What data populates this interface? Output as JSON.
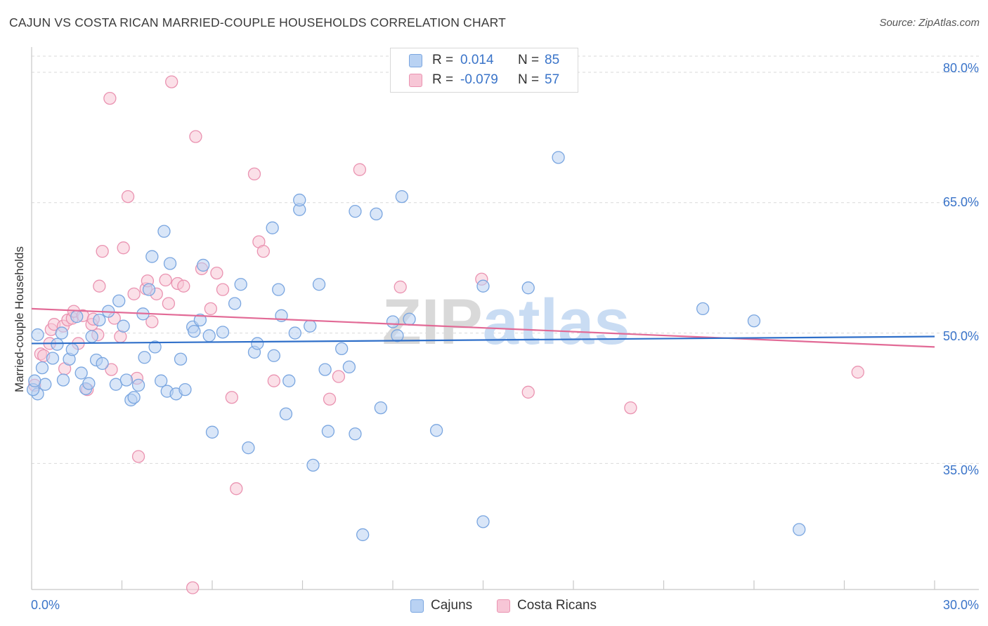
{
  "title": "CAJUN VS COSTA RICAN MARRIED-COUPLE HOUSEHOLDS CORRELATION CHART",
  "source": "Source: ZipAtlas.com",
  "watermark": "ZIPatlas",
  "legend": {
    "rows": [
      {
        "r_label": "R =",
        "r_value": "0.014",
        "n_label": "N =",
        "n_value": "85"
      },
      {
        "r_label": "R =",
        "r_value": "-0.079",
        "n_label": "N =",
        "n_value": "57"
      }
    ]
  },
  "bottom_legend": [
    "Cajuns",
    "Costa Ricans"
  ],
  "colors": {
    "cajuns_fill": "#b9d2f3",
    "cajuns_stroke": "#7aa6e0",
    "cajuns_line": "#2f6fc9",
    "costa_fill": "#f7c6d6",
    "costa_stroke": "#ea93b1",
    "costa_line": "#e26a96",
    "tick_text": "#3a74c9",
    "grid": "#d9d9d9"
  },
  "chart_data": {
    "type": "scatter",
    "title": "CAJUN VS COSTA RICAN MARRIED-COUPLE HOUSEHOLDS CORRELATION CHART",
    "xlabel": "",
    "ylabel": "Married-couple Households",
    "xlim": [
      0,
      30
    ],
    "ylim": [
      20.5,
      82.5
    ],
    "x_tick_labels": [
      "0.0%",
      "30.0%"
    ],
    "y_ticks": [
      35,
      50,
      65,
      80
    ],
    "y_tick_labels": [
      "35.0%",
      "50.0%",
      "65.0%",
      "80.0%"
    ],
    "grid": true,
    "legend_position": "top-center",
    "series": [
      {
        "name": "Cajuns",
        "r": 0.014,
        "n": 85,
        "trend": {
          "x": [
            0,
            30
          ],
          "y": [
            48.8,
            49.6
          ]
        },
        "points": [
          [
            0.2,
            43.0
          ],
          [
            0.2,
            49.8
          ],
          [
            0.35,
            46.0
          ],
          [
            0.45,
            44.1
          ],
          [
            0.7,
            47.1
          ],
          [
            0.85,
            48.7
          ],
          [
            1.0,
            50.0
          ],
          [
            1.05,
            44.6
          ],
          [
            1.25,
            47.0
          ],
          [
            1.35,
            48.1
          ],
          [
            1.5,
            51.9
          ],
          [
            1.65,
            45.4
          ],
          [
            1.8,
            43.6
          ],
          [
            1.9,
            44.2
          ],
          [
            2.0,
            49.6
          ],
          [
            2.15,
            46.9
          ],
          [
            2.25,
            51.5
          ],
          [
            2.35,
            46.5
          ],
          [
            2.55,
            52.5
          ],
          [
            2.8,
            44.1
          ],
          [
            2.9,
            53.7
          ],
          [
            3.05,
            50.8
          ],
          [
            3.15,
            44.6
          ],
          [
            3.3,
            42.3
          ],
          [
            3.4,
            42.6
          ],
          [
            3.55,
            44.0
          ],
          [
            3.7,
            52.2
          ],
          [
            3.75,
            47.2
          ],
          [
            3.9,
            55.0
          ],
          [
            4.0,
            58.8
          ],
          [
            4.1,
            48.4
          ],
          [
            4.3,
            44.5
          ],
          [
            4.4,
            61.7
          ],
          [
            4.5,
            43.3
          ],
          [
            4.6,
            58.0
          ],
          [
            4.8,
            43.0
          ],
          [
            4.95,
            47.0
          ],
          [
            5.1,
            43.5
          ],
          [
            5.35,
            50.7
          ],
          [
            5.4,
            50.2
          ],
          [
            5.6,
            51.5
          ],
          [
            5.7,
            57.8
          ],
          [
            5.9,
            49.7
          ],
          [
            6.0,
            38.6
          ],
          [
            6.35,
            50.1
          ],
          [
            6.75,
            53.4
          ],
          [
            6.95,
            55.6
          ],
          [
            7.2,
            36.8
          ],
          [
            7.4,
            47.8
          ],
          [
            7.5,
            48.8
          ],
          [
            8.0,
            62.1
          ],
          [
            8.05,
            47.4
          ],
          [
            8.2,
            55.0
          ],
          [
            8.3,
            52.0
          ],
          [
            8.45,
            40.7
          ],
          [
            8.55,
            44.5
          ],
          [
            8.75,
            50.0
          ],
          [
            8.9,
            64.2
          ],
          [
            8.9,
            65.3
          ],
          [
            9.25,
            50.8
          ],
          [
            9.35,
            34.8
          ],
          [
            9.55,
            55.6
          ],
          [
            9.75,
            45.8
          ],
          [
            9.85,
            38.7
          ],
          [
            10.3,
            48.2
          ],
          [
            10.55,
            46.1
          ],
          [
            10.75,
            38.4
          ],
          [
            10.75,
            64.0
          ],
          [
            11.0,
            26.8
          ],
          [
            11.45,
            63.7
          ],
          [
            11.6,
            41.4
          ],
          [
            12.0,
            51.3
          ],
          [
            12.3,
            65.7
          ],
          [
            12.15,
            49.7
          ],
          [
            12.55,
            51.6
          ],
          [
            13.45,
            38.8
          ],
          [
            15.0,
            55.4
          ],
          [
            15.0,
            28.3
          ],
          [
            16.5,
            55.2
          ],
          [
            17.5,
            70.2
          ],
          [
            22.3,
            52.8
          ],
          [
            24.0,
            51.4
          ],
          [
            25.5,
            27.4
          ],
          [
            0.05,
            43.5
          ],
          [
            0.1,
            44.5
          ]
        ]
      },
      {
        "name": "Costa Ricans",
        "r": -0.079,
        "n": 57,
        "trend": {
          "x": [
            0,
            30
          ],
          "y": [
            52.8,
            48.4
          ]
        },
        "points": [
          [
            0.1,
            44.0
          ],
          [
            0.3,
            47.6
          ],
          [
            0.4,
            47.4
          ],
          [
            0.6,
            48.8
          ],
          [
            0.65,
            50.4
          ],
          [
            0.75,
            51.0
          ],
          [
            1.05,
            50.8
          ],
          [
            1.1,
            45.9
          ],
          [
            1.2,
            51.5
          ],
          [
            1.35,
            51.7
          ],
          [
            1.4,
            52.5
          ],
          [
            1.55,
            48.8
          ],
          [
            1.7,
            52.0
          ],
          [
            1.85,
            43.5
          ],
          [
            2.0,
            51.0
          ],
          [
            2.05,
            51.6
          ],
          [
            2.2,
            49.8
          ],
          [
            2.25,
            55.4
          ],
          [
            2.35,
            59.4
          ],
          [
            2.6,
            77.0
          ],
          [
            2.65,
            45.8
          ],
          [
            2.75,
            51.7
          ],
          [
            2.95,
            49.6
          ],
          [
            3.05,
            59.8
          ],
          [
            3.2,
            65.7
          ],
          [
            3.4,
            54.5
          ],
          [
            3.5,
            44.8
          ],
          [
            3.55,
            35.8
          ],
          [
            3.8,
            55.1
          ],
          [
            3.85,
            56.0
          ],
          [
            4.0,
            51.3
          ],
          [
            4.15,
            54.5
          ],
          [
            4.45,
            56.1
          ],
          [
            4.55,
            53.4
          ],
          [
            4.65,
            78.9
          ],
          [
            4.85,
            55.7
          ],
          [
            5.05,
            55.4
          ],
          [
            5.35,
            20.7
          ],
          [
            5.45,
            72.6
          ],
          [
            5.65,
            57.4
          ],
          [
            5.95,
            52.8
          ],
          [
            6.15,
            56.9
          ],
          [
            6.35,
            55.0
          ],
          [
            6.65,
            42.6
          ],
          [
            6.8,
            32.1
          ],
          [
            7.4,
            68.3
          ],
          [
            7.55,
            60.5
          ],
          [
            7.7,
            59.4
          ],
          [
            8.05,
            44.5
          ],
          [
            9.9,
            42.4
          ],
          [
            10.2,
            45.0
          ],
          [
            10.9,
            68.8
          ],
          [
            12.25,
            55.3
          ],
          [
            14.95,
            56.2
          ],
          [
            16.5,
            43.2
          ],
          [
            19.9,
            41.4
          ],
          [
            27.45,
            45.5
          ]
        ]
      }
    ]
  }
}
